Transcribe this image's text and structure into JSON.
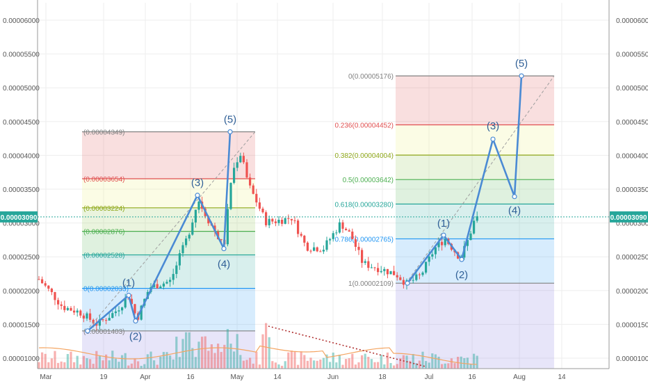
{
  "chart_data": {
    "type": "candlestick",
    "instrument_price": "0.00003090",
    "y_axis": {
      "range": [
        8.8e-06,
        6.6e-06
      ],
      "ticks": [
        "0.00001000",
        "0.00001500",
        "0.00002000",
        "0.00002500",
        "0.00003000",
        "0.00003500",
        "0.00004000",
        "0.00004500",
        "0.00005000",
        "0.00005500",
        "0.00006000"
      ]
    },
    "x_axis": {
      "ticks": [
        "Mar",
        "19",
        "Apr",
        "16",
        "May",
        "14",
        "Jun",
        "18",
        "Jul",
        "16",
        "Aug",
        "14"
      ]
    },
    "fib_left": {
      "levels": [
        {
          "label": "(0.00004349)",
          "price": 4.349e-05,
          "color": "#808080"
        },
        {
          "label": "(0.00003654)",
          "price": 3.654e-05,
          "color": "#e05050"
        },
        {
          "label": "(0.00003224)",
          "price": 3.224e-05,
          "color": "#8fa81a"
        },
        {
          "label": "(0.00002876)",
          "price": 2.876e-05,
          "color": "#4caf50"
        },
        {
          "label": "(0.00002528)",
          "price": 2.528e-05,
          "color": "#26a69a"
        },
        {
          "label": "0(0.00002033)",
          "price": 2.033e-05,
          "color": "#2196f3"
        },
        {
          "label": "(0.00001403)",
          "price": 1.403e-05,
          "color": "#808080"
        }
      ]
    },
    "fib_right": {
      "levels": [
        {
          "label": "0(0.00005176)",
          "price": 5.176e-05,
          "color": "#808080"
        },
        {
          "label": "0.236(0.00004452)",
          "price": 4.452e-05,
          "color": "#e05050"
        },
        {
          "label": "0.382(0.00004004)",
          "price": 4.004e-05,
          "color": "#8fa81a"
        },
        {
          "label": "0.5(0.00003642)",
          "price": 3.642e-05,
          "color": "#4caf50"
        },
        {
          "label": "0.618(0.00003280)",
          "price": 3.28e-05,
          "color": "#26a69a"
        },
        {
          "label": "0.786(0.00002765)",
          "price": 2.765e-05,
          "color": "#2196f3"
        },
        {
          "label": "1(0.00002109)",
          "price": 2.109e-05,
          "color": "#808080"
        }
      ]
    },
    "waves_left": [
      {
        "label": "(1)",
        "price": 1.93e-05
      },
      {
        "label": "(2)",
        "price": 1.55e-05
      },
      {
        "label": "(3)",
        "price": 3.41e-05
      },
      {
        "label": "(4)",
        "price": 2.62e-05
      },
      {
        "label": "(5)",
        "price": 4.349e-05
      }
    ],
    "waves_right": [
      {
        "label": "(1)",
        "price": 2.82e-05
      },
      {
        "label": "(2)",
        "price": 2.46e-05
      },
      {
        "label": "(3)",
        "price": 4.24e-05
      },
      {
        "label": "(4)",
        "price": 3.39e-05
      },
      {
        "label": "(5)",
        "price": 5.176e-05
      }
    ]
  },
  "colors": {
    "up": "#26a69a",
    "down": "#ef5350",
    "wave": "#4a8ad4",
    "price_tag": "#26a69a",
    "grid": "#eeeeee",
    "volume_ma": "#f4a460",
    "trend_dotted": "#b03030"
  }
}
